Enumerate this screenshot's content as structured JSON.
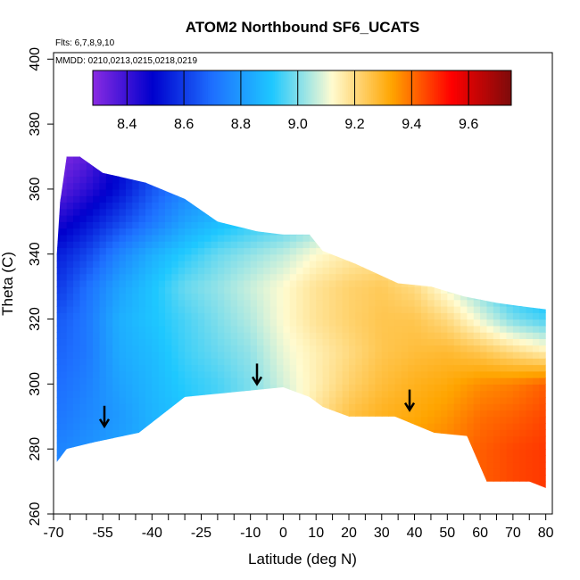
{
  "chart_data": {
    "type": "heatmap",
    "title": "ATOM2 Northbound SF6_UCATS",
    "annotations": [
      "Flts: 6,7,8,9,10",
      "MMDD: 0210,0213,0215,0218,0219"
    ],
    "xlabel": "Latitude (deg N)",
    "ylabel": "Theta (C)",
    "xlim": [
      -70,
      82
    ],
    "ylim": [
      260,
      402
    ],
    "x_tick_labels": [
      "-70",
      "-55",
      "-40",
      "-25",
      "-10",
      "0",
      "10",
      "20",
      "30",
      "40",
      "50",
      "60",
      "70",
      "80"
    ],
    "x_ticks": [
      -70,
      -55,
      -40,
      -25,
      -10,
      0,
      10,
      20,
      30,
      40,
      50,
      60,
      70,
      80
    ],
    "x_minor_ticks": [
      -65,
      -60,
      -50,
      -45,
      -35,
      -30,
      -20,
      -15,
      -5,
      5,
      15,
      25,
      35,
      45,
      55,
      65,
      75
    ],
    "y_ticks": [
      260,
      280,
      300,
      320,
      340,
      360,
      380,
      400
    ],
    "y_tick_labels": [
      "260",
      "280",
      "300",
      "320",
      "340",
      "360",
      "380",
      "400"
    ],
    "colorbar": {
      "range": [
        8.28,
        9.75
      ],
      "tick_values": [
        8.4,
        8.6,
        8.8,
        9.0,
        9.2,
        9.4,
        9.6
      ],
      "tick_labels": [
        "8.4",
        "8.6",
        "8.8",
        "9.0",
        "9.2",
        "9.4",
        "9.6"
      ],
      "line_values": [
        8.4,
        8.6,
        8.8,
        9.0,
        9.2,
        9.4,
        9.6
      ],
      "colors": [
        "#8a2be2",
        "#0000cd",
        "#1e6fff",
        "#1ec8ff",
        "#fffbd0",
        "#ffa500",
        "#ff0000",
        "#7d0b0b"
      ]
    },
    "field": {
      "lat_grid": [
        -68,
        -60,
        -50,
        -40,
        -30,
        -20,
        -10,
        0,
        10,
        20,
        30,
        40,
        50,
        60,
        70,
        80
      ],
      "theta_grid": [
        280,
        290,
        300,
        310,
        320,
        330,
        340,
        350,
        360,
        370
      ],
      "values": [
        [
          8.75,
          8.78,
          8.82,
          8.85,
          8.9,
          8.95,
          9.0,
          9.05,
          9.2,
          9.3,
          9.35,
          9.35,
          9.38,
          9.42,
          9.45,
          9.47
        ],
        [
          8.72,
          8.76,
          8.8,
          8.86,
          8.9,
          8.95,
          9.0,
          9.05,
          9.18,
          9.26,
          9.3,
          9.32,
          9.35,
          9.4,
          9.42,
          9.45
        ],
        [
          8.7,
          8.74,
          8.82,
          8.87,
          8.92,
          8.95,
          9.0,
          9.08,
          9.15,
          9.22,
          9.27,
          9.3,
          9.32,
          9.36,
          9.38,
          9.42
        ],
        [
          8.68,
          8.72,
          8.84,
          8.88,
          8.94,
          8.98,
          9.02,
          9.1,
          9.15,
          9.2,
          9.25,
          9.27,
          9.28,
          9.25,
          9.2,
          9.15
        ],
        [
          8.66,
          8.72,
          8.85,
          8.9,
          8.95,
          9.0,
          9.05,
          9.12,
          9.18,
          9.22,
          9.25,
          9.25,
          9.2,
          9.1,
          9.0,
          8.95
        ],
        [
          8.6,
          8.7,
          8.82,
          8.9,
          8.98,
          9.02,
          9.07,
          9.12,
          9.18,
          9.22,
          9.24,
          9.2,
          9.1,
          9.0,
          8.9,
          8.85
        ],
        [
          8.55,
          8.62,
          8.75,
          8.85,
          8.92,
          8.98,
          9.02,
          9.06,
          9.12,
          9.16,
          9.18,
          9.1,
          9.0,
          8.95,
          8.9,
          8.85
        ],
        [
          8.45,
          8.52,
          8.62,
          8.72,
          8.82,
          8.88,
          8.92,
          8.95,
          9.0,
          9.05,
          9.05,
          9.0,
          8.95,
          8.9,
          8.85,
          8.8
        ],
        [
          8.35,
          8.42,
          8.52,
          8.65,
          8.75,
          8.8,
          8.85,
          8.88,
          8.92,
          8.95,
          8.95,
          8.92,
          8.9,
          8.85,
          8.8,
          8.75
        ],
        [
          8.3,
          8.35,
          8.5,
          8.6,
          8.7,
          8.75,
          8.8,
          8.85,
          8.88,
          8.9,
          8.9,
          8.88,
          8.85,
          8.8,
          8.75,
          8.7
        ]
      ]
    },
    "data_region": {
      "top_boundary": [
        [
          -69,
          340
        ],
        [
          -68,
          356
        ],
        [
          -66,
          370
        ],
        [
          -62,
          370
        ],
        [
          -55,
          365
        ],
        [
          -42,
          362
        ],
        [
          -30,
          357
        ],
        [
          -20,
          350
        ],
        [
          -8,
          347
        ],
        [
          0,
          346
        ],
        [
          8,
          346
        ],
        [
          12,
          341
        ],
        [
          22,
          337
        ],
        [
          35,
          331
        ],
        [
          45,
          330
        ],
        [
          55,
          327
        ],
        [
          65,
          325
        ],
        [
          72,
          324
        ],
        [
          80,
          323
        ]
      ],
      "bottom_boundary": [
        [
          -69,
          276
        ],
        [
          -66,
          280
        ],
        [
          -58,
          282
        ],
        [
          -44,
          285
        ],
        [
          -30,
          296
        ],
        [
          -20,
          297
        ],
        [
          -10,
          298
        ],
        [
          0,
          299
        ],
        [
          8,
          296
        ],
        [
          12,
          293
        ],
        [
          20,
          290
        ],
        [
          34,
          290
        ],
        [
          46,
          285
        ],
        [
          56,
          284
        ],
        [
          62,
          270
        ],
        [
          75,
          270
        ],
        [
          80,
          268
        ]
      ]
    },
    "arrows": [
      [
        -54.5,
        290
      ],
      [
        -8,
        303
      ],
      [
        38.5,
        295
      ]
    ],
    "grid": false,
    "legend": "colorbar-top-inside"
  }
}
